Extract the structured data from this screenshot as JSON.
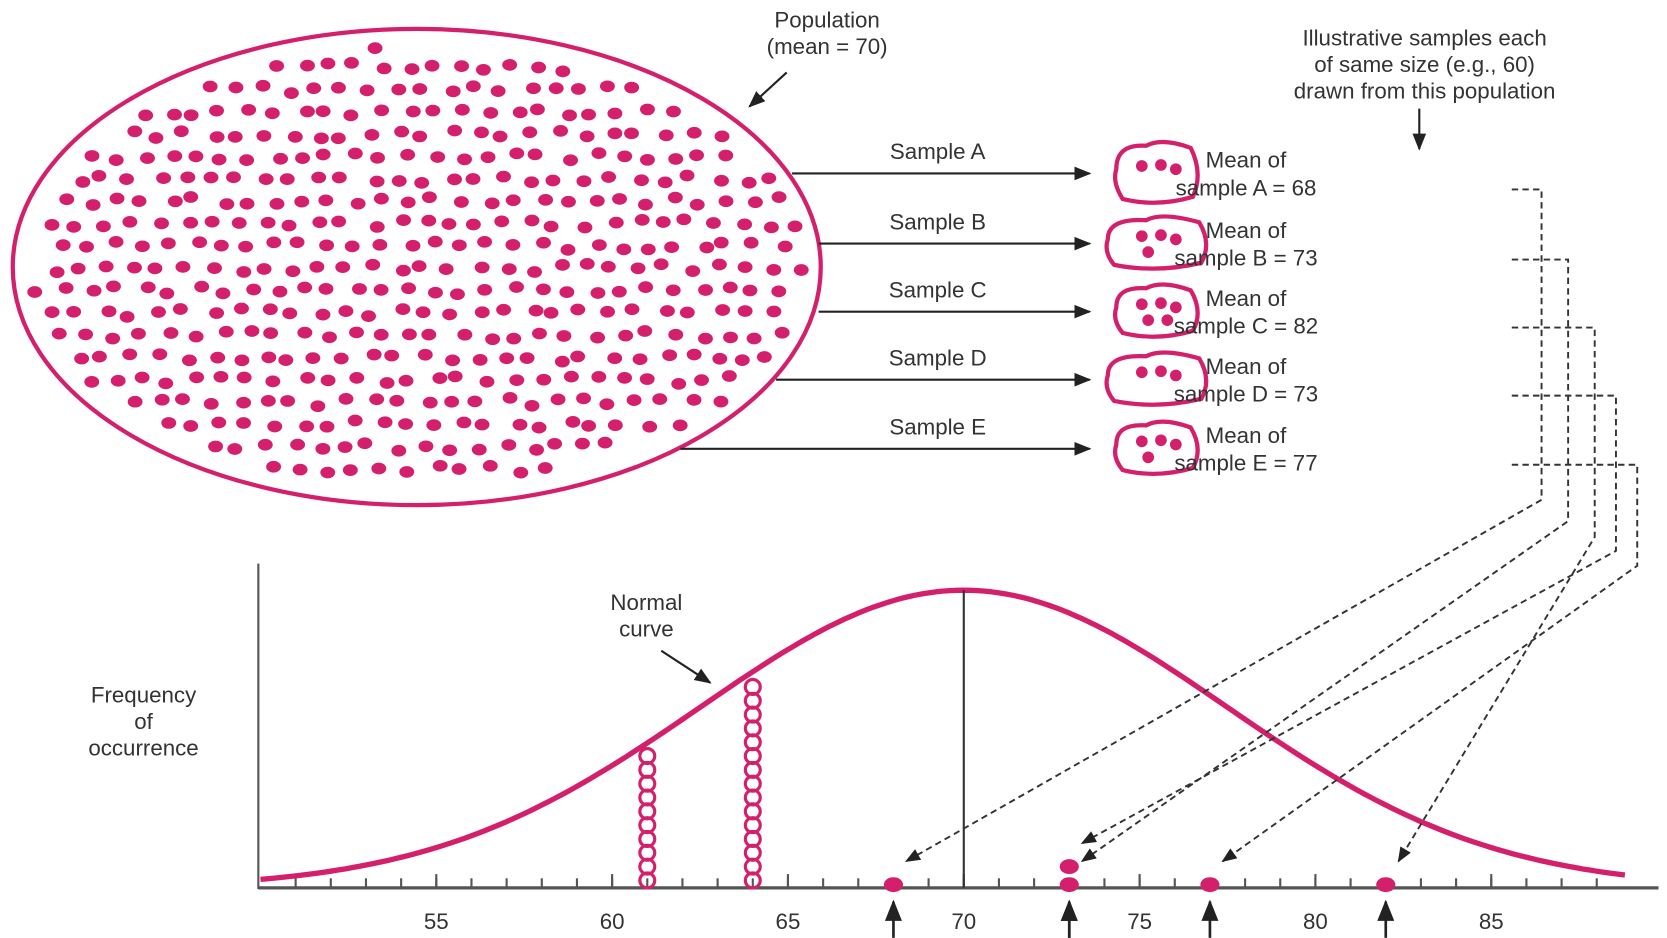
{
  "population": {
    "label": [
      "Population",
      "(mean = 70)"
    ],
    "mean": 70
  },
  "note": [
    "Illustrative samples each",
    "of same size (e.g., 60)",
    "drawn from this population"
  ],
  "samples": [
    {
      "name": "Sample A",
      "mean_label": [
        "Mean of",
        "sample A = 68"
      ],
      "mean": 68
    },
    {
      "name": "Sample B",
      "mean_label": [
        "Mean of",
        "sample B = 73"
      ],
      "mean": 73
    },
    {
      "name": "Sample C",
      "mean_label": [
        "Mean of",
        "sample C = 82"
      ],
      "mean": 82
    },
    {
      "name": "Sample D",
      "mean_label": [
        "Mean of",
        "sample D = 73"
      ],
      "mean": 73
    },
    {
      "name": "Sample E",
      "mean_label": [
        "Mean of",
        "sample E = 77"
      ],
      "mean": 77
    }
  ],
  "curve_label": [
    "Normal",
    "curve"
  ],
  "y_axis_label": [
    "Frequency",
    "of",
    "occurrence"
  ],
  "axis": {
    "xlim": [
      50,
      89
    ],
    "xticks": [
      55,
      60,
      65,
      70,
      75,
      80,
      85
    ]
  }
}
